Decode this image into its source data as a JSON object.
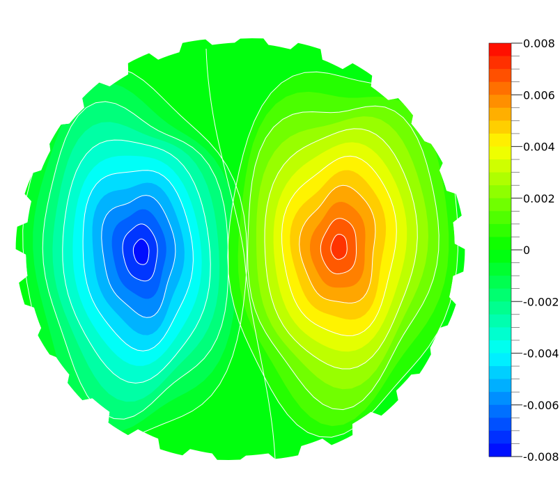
{
  "chart_data": {
    "type": "heatmap",
    "title": "",
    "xlabel": "",
    "ylabel": "",
    "colorbar": {
      "range": [
        -0.008,
        0.008
      ],
      "levels": 32,
      "ticks": [
        {
          "value": 0.008,
          "label": "0.008"
        },
        {
          "value": 0.006,
          "label": "0.006"
        },
        {
          "value": 0.004,
          "label": "0.004"
        },
        {
          "value": 0.002,
          "label": "0.002"
        },
        {
          "value": 0,
          "label": "0"
        },
        {
          "value": -0.002,
          "label": "-0.002"
        },
        {
          "value": -0.004,
          "label": "-0.004"
        },
        {
          "value": -0.006,
          "label": "-0.006"
        },
        {
          "value": -0.008,
          "label": "-0.008"
        }
      ],
      "colormap": [
        "#0000ff",
        "#00ffff",
        "#00ff00",
        "#ffff00",
        "#ff0000"
      ]
    },
    "field": {
      "shape": "circular-hexagonal-domain",
      "extrema": [
        {
          "name": "minimum",
          "value": -0.0078
        },
        {
          "name": "maximum",
          "value": 0.0072
        }
      ],
      "contour_color": "#ffffff"
    }
  }
}
